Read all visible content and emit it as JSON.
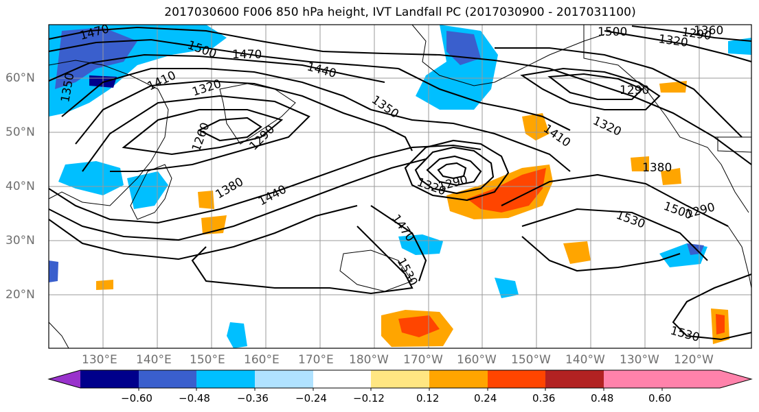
{
  "title": "2017030600 F006 850 hPa height, IVT Landfall PC (2017030900 - 2017031100)",
  "lat_labels": [
    "60°N",
    "50°N",
    "40°N",
    "30°N",
    "20°N"
  ],
  "lon_labels": [
    "130°E",
    "140°E",
    "150°E",
    "160°E",
    "170°E",
    "180°W",
    "170°W",
    "160°W",
    "150°W",
    "140°W",
    "130°W",
    "120°W"
  ],
  "contour_labels": [
    "1470",
    "1500",
    "1470",
    "1440",
    "1410",
    "1320",
    "1350",
    "1290",
    "1260",
    "1290",
    "1380",
    "1440",
    "1320",
    "1290",
    "1470",
    "1530",
    "1410",
    "1320",
    "1290",
    "1380",
    "1500",
    "1530",
    "1530",
    "1500",
    "1290",
    "1320",
    "1360",
    "1350"
  ],
  "colorbar": {
    "colors": [
      "#9932cc",
      "#00008b",
      "#3a5fcd",
      "#00bfff",
      "#b0e2ff",
      "#ffffff",
      "#ffe682",
      "#ffa500",
      "#ff4500",
      "#b22222",
      "#ff82ab"
    ],
    "tick_labels": [
      "−0.60",
      "−0.48",
      "−0.36",
      "−0.24",
      "−0.12",
      "0.12",
      "0.24",
      "0.36",
      "0.48",
      "0.60"
    ]
  }
}
